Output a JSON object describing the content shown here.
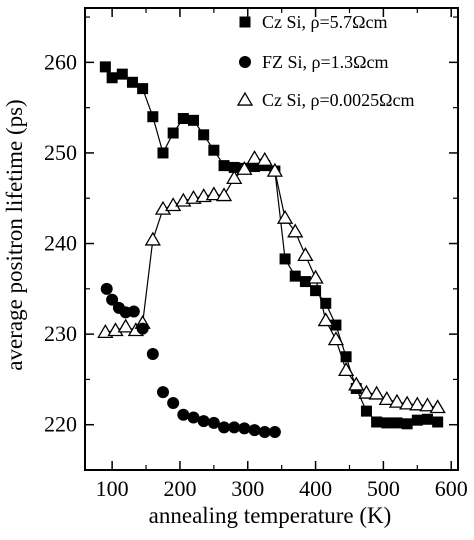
{
  "chart_data": {
    "type": "scatter",
    "title": "",
    "xlabel": "annealing temperature (K)",
    "ylabel": "average positron lifetime (ps)",
    "xlim": [
      60,
      610
    ],
    "ylim": [
      215,
      266
    ],
    "xticks": [
      100,
      200,
      300,
      400,
      500,
      600
    ],
    "yticks": [
      220,
      230,
      240,
      250,
      260
    ],
    "grid": false,
    "legend_position": "top-right",
    "series": [
      {
        "name": "Cz Si, ρ=5.7Ωcm",
        "marker": "filled-square",
        "connected": true,
        "x": [
          90,
          100,
          115,
          130,
          145,
          160,
          175,
          190,
          205,
          220,
          235,
          250,
          265,
          280,
          295,
          310,
          325,
          340,
          355,
          370,
          385,
          400,
          415,
          430,
          445,
          460,
          475,
          490,
          505,
          520,
          535,
          550,
          565,
          580
        ],
        "y": [
          259.5,
          258.3,
          258.7,
          257.8,
          257.1,
          254.0,
          250.0,
          252.2,
          253.8,
          253.6,
          252.0,
          250.3,
          248.6,
          248.4,
          248.3,
          248.5,
          248.6,
          248.0,
          238.3,
          236.4,
          235.8,
          234.8,
          233.4,
          231.0,
          227.5,
          224.0,
          221.5,
          220.3,
          220.2,
          220.2,
          220.1,
          220.5,
          220.6,
          220.3
        ]
      },
      {
        "name": "FZ Si, ρ=1.3Ωcm",
        "marker": "filled-circle",
        "connected": false,
        "x": [
          92,
          100,
          110,
          120,
          132,
          145,
          160,
          175,
          190,
          205,
          220,
          235,
          250,
          265,
          280,
          295,
          310,
          325,
          340
        ],
        "y": [
          235.0,
          233.8,
          232.9,
          232.4,
          232.5,
          230.6,
          227.8,
          223.6,
          222.4,
          221.1,
          220.8,
          220.4,
          220.2,
          219.7,
          219.7,
          219.6,
          219.4,
          219.2,
          219.2
        ]
      },
      {
        "name": "Cz Si, ρ=0.0025Ωcm",
        "marker": "open-triangle",
        "connected": true,
        "x": [
          90,
          105,
          120,
          135,
          145,
          160,
          175,
          190,
          205,
          220,
          235,
          250,
          265,
          280,
          295,
          310,
          325,
          340,
          355,
          370,
          385,
          400,
          415,
          430,
          445,
          460,
          475,
          490,
          505,
          520,
          535,
          550,
          565,
          580
        ],
        "y": [
          230.2,
          230.4,
          230.8,
          230.4,
          231.2,
          240.4,
          243.8,
          244.2,
          244.7,
          245.0,
          245.2,
          245.4,
          245.3,
          247.2,
          248.2,
          249.4,
          249.2,
          248.0,
          242.8,
          241.3,
          238.7,
          236.2,
          231.5,
          229.4,
          226.0,
          224.4,
          223.5,
          223.4,
          222.8,
          222.5,
          222.3,
          222.2,
          222.1,
          221.9
        ]
      }
    ]
  }
}
